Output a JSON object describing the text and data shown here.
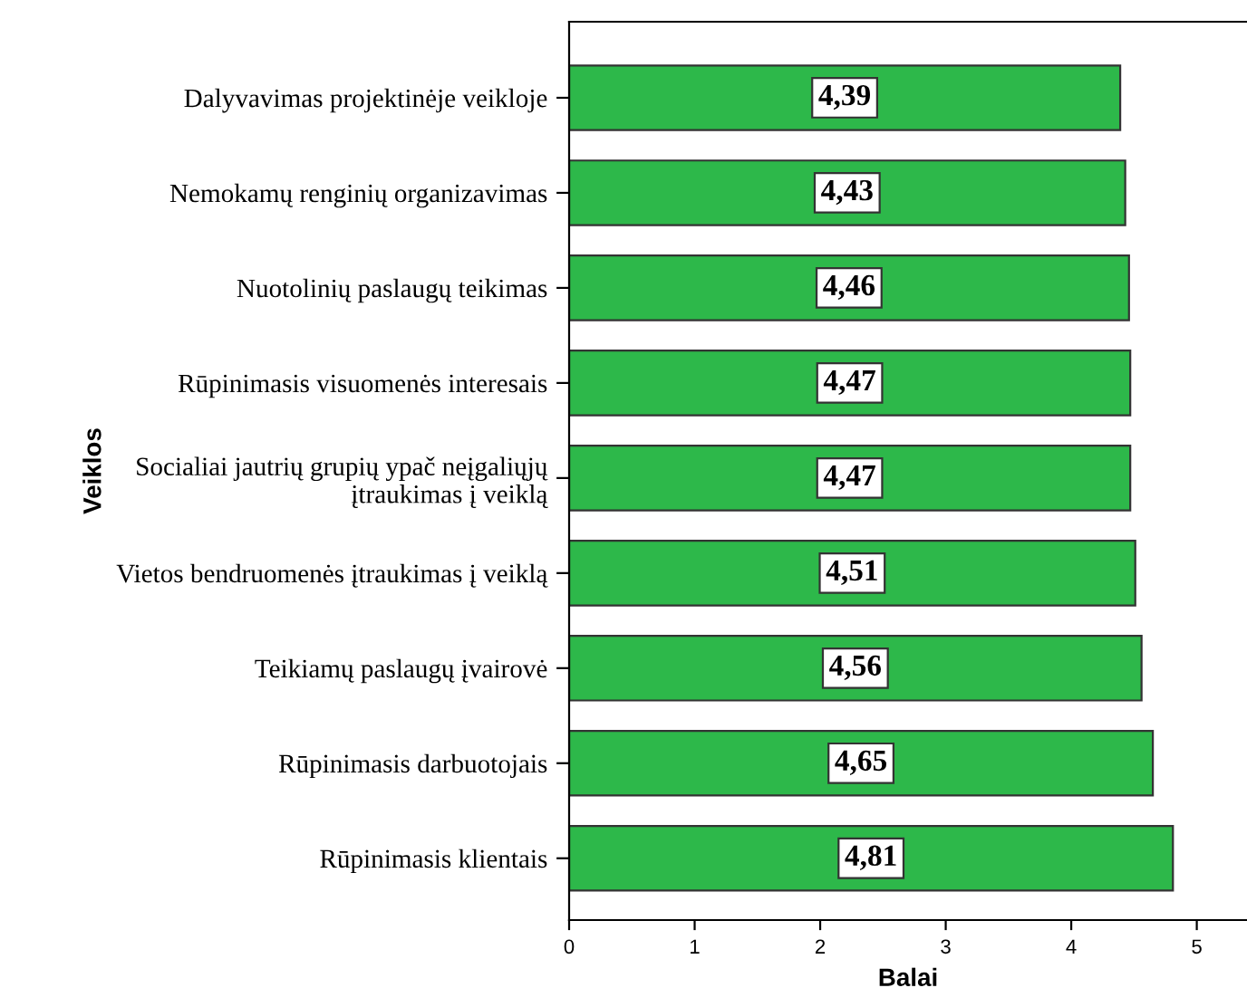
{
  "chart_data": {
    "type": "bar",
    "orientation": "horizontal",
    "xlabel": "Balai",
    "ylabel": "Veiklos",
    "categories": [
      "Dalyvavimas projektinėje veikloje",
      "Nemokamų renginių organizavimas",
      "Nuotolinių paslaugų teikimas",
      "Rūpinimasis visuomenės interesais",
      "Socialiai jautrių grupių ypač neįgaliųjų\nįtraukimas į veiklą",
      "Vietos bendruomenės įtraukimas į veiklą",
      "Teikiamų paslaugų įvairovė",
      "Rūpinimasis darbuotojais",
      "Rūpinimasis klientais"
    ],
    "values": [
      4.39,
      4.43,
      4.46,
      4.47,
      4.47,
      4.51,
      4.56,
      4.65,
      4.81
    ],
    "value_labels": [
      "4,39",
      "4,43",
      "4,46",
      "4,47",
      "4,47",
      "4,51",
      "4,56",
      "4,65",
      "4,81"
    ],
    "color": "#2db84a",
    "xlim": [
      0,
      5.4
    ],
    "xticks": [
      0,
      1,
      2,
      3,
      4,
      5
    ],
    "grid": false,
    "legend": false
  }
}
